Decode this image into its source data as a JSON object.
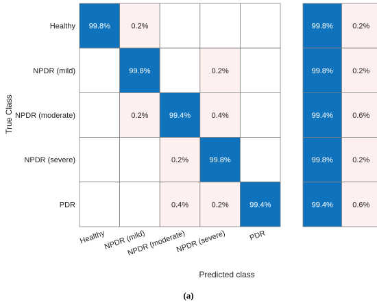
{
  "chart_data": {
    "type": "heatmap",
    "title": "",
    "xlabel": "Predicted class",
    "ylabel": "True Class",
    "caption": "(a)",
    "classes": [
      "Healthy",
      "NPDR (mild)",
      "NPDR (moderate)",
      "NPDR (severe)",
      "PDR"
    ],
    "matrix": [
      [
        "99.8%",
        "0.2%",
        "",
        "",
        ""
      ],
      [
        "",
        "99.8%",
        "",
        "0.2%",
        ""
      ],
      [
        "",
        "0.2%",
        "99.4%",
        "0.4%",
        ""
      ],
      [
        "",
        "",
        "0.2%",
        "99.8%",
        ""
      ],
      [
        "",
        "",
        "0.4%",
        "0.2%",
        "99.4%"
      ]
    ],
    "row_summary": [
      [
        "99.8%",
        "0.2%"
      ],
      [
        "99.8%",
        "0.2%"
      ],
      [
        "99.4%",
        "0.6%"
      ],
      [
        "99.8%",
        "0.2%"
      ],
      [
        "99.4%",
        "0.6%"
      ]
    ],
    "colors": {
      "correct": "#0e72bd",
      "error": "#fdf0ef",
      "empty": "#ffffff",
      "grid": "#7f7f7f",
      "correct_text": "#ffffff",
      "error_text": "#222222"
    }
  }
}
